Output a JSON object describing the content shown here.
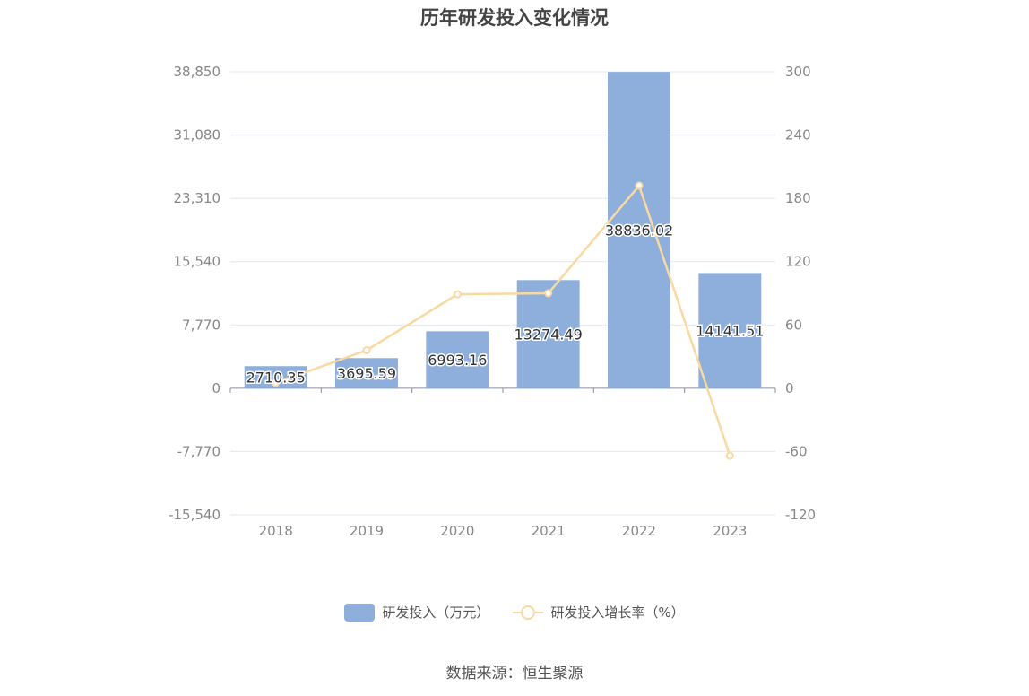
{
  "chart_data": {
    "type": "bar",
    "title": "历年研发投入变化情况",
    "categories": [
      "2018",
      "2019",
      "2020",
      "2021",
      "2022",
      "2023"
    ],
    "series": [
      {
        "name": "研发投入（万元）",
        "type": "bar",
        "axis": "left",
        "color": "#8eaedb",
        "values": [
          2710.35,
          3695.59,
          6993.16,
          13274.49,
          38836.02,
          14141.51
        ],
        "labels": [
          "2710.35",
          "3695.59",
          "6993.16",
          "13274.49",
          "38836.02",
          "14141.51"
        ]
      },
      {
        "name": "研发投入增长率（%）",
        "type": "line",
        "axis": "right",
        "color": "#f9d9a0",
        "values": [
          5,
          36,
          89,
          90,
          192,
          -64
        ]
      }
    ],
    "y_left": {
      "ylim": [
        -15540,
        38850
      ],
      "ticks": [
        "38,850",
        "31,080",
        "23,310",
        "15,540",
        "7,770",
        "0",
        "-7,770",
        "-15,540"
      ]
    },
    "y_right": {
      "ylim": [
        -120,
        300
      ],
      "ticks": [
        "300",
        "240",
        "180",
        "120",
        "60",
        "0",
        "-60",
        "-120"
      ]
    },
    "grid": true,
    "legend_position": "bottom"
  },
  "source": "数据来源：恒生聚源"
}
